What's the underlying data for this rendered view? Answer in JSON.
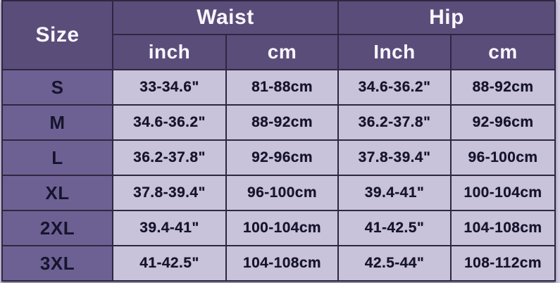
{
  "table": {
    "header": {
      "size_label": "Size",
      "waist_label": "Waist",
      "hip_label": "Hip",
      "waist_units": [
        "inch",
        "cm"
      ],
      "hip_units": [
        "Inch",
        "cm"
      ]
    },
    "rows": [
      {
        "size": "S",
        "waist_inch": "33-34.6\"",
        "waist_cm": "81-88cm",
        "hip_inch": "34.6-36.2\"",
        "hip_cm": "88-92cm"
      },
      {
        "size": "M",
        "waist_inch": "34.6-36.2\"",
        "waist_cm": "88-92cm",
        "hip_inch": "36.2-37.8\"",
        "hip_cm": "92-96cm"
      },
      {
        "size": "L",
        "waist_inch": "36.2-37.8\"",
        "waist_cm": "92-96cm",
        "hip_inch": "37.8-39.4\"",
        "hip_cm": "96-100cm"
      },
      {
        "size": "XL",
        "waist_inch": "37.8-39.4\"",
        "waist_cm": "96-100cm",
        "hip_inch": "39.4-41\"",
        "hip_cm": "100-104cm"
      },
      {
        "size": "2XL",
        "waist_inch": "39.4-41\"",
        "waist_cm": "100-104cm",
        "hip_inch": "41-42.5\"",
        "hip_cm": "104-108cm"
      },
      {
        "size": "3XL",
        "waist_inch": "41-42.5\"",
        "waist_cm": "104-108cm",
        "hip_inch": "42.5-44\"",
        "hip_cm": "108-112cm"
      }
    ],
    "colors": {
      "header_bg": "#5b4d7a",
      "size_column_bg": "#6d6194",
      "data_cell_bg": "#c8c2db",
      "border": "#2e2740",
      "header_text": "#f8f6fc",
      "cell_text": "#17142d",
      "page_bg": "#cfc9e2"
    }
  },
  "chart_data": {
    "type": "table",
    "title": "Size chart (Waist / Hip measurements)",
    "columns": [
      "Size",
      "Waist inch",
      "Waist cm",
      "Hip Inch",
      "Hip cm"
    ],
    "rows": [
      [
        "S",
        "33-34.6\"",
        "81-88cm",
        "34.6-36.2\"",
        "88-92cm"
      ],
      [
        "M",
        "34.6-36.2\"",
        "88-92cm",
        "36.2-37.8\"",
        "92-96cm"
      ],
      [
        "L",
        "36.2-37.8\"",
        "92-96cm",
        "37.8-39.4\"",
        "96-100cm"
      ],
      [
        "XL",
        "37.8-39.4\"",
        "96-100cm",
        "39.4-41\"",
        "100-104cm"
      ],
      [
        "2XL",
        "39.4-41\"",
        "100-104cm",
        "41-42.5\"",
        "104-108cm"
      ],
      [
        "3XL",
        "41-42.5\"",
        "104-108cm",
        "42.5-44\"",
        "108-112cm"
      ]
    ]
  }
}
